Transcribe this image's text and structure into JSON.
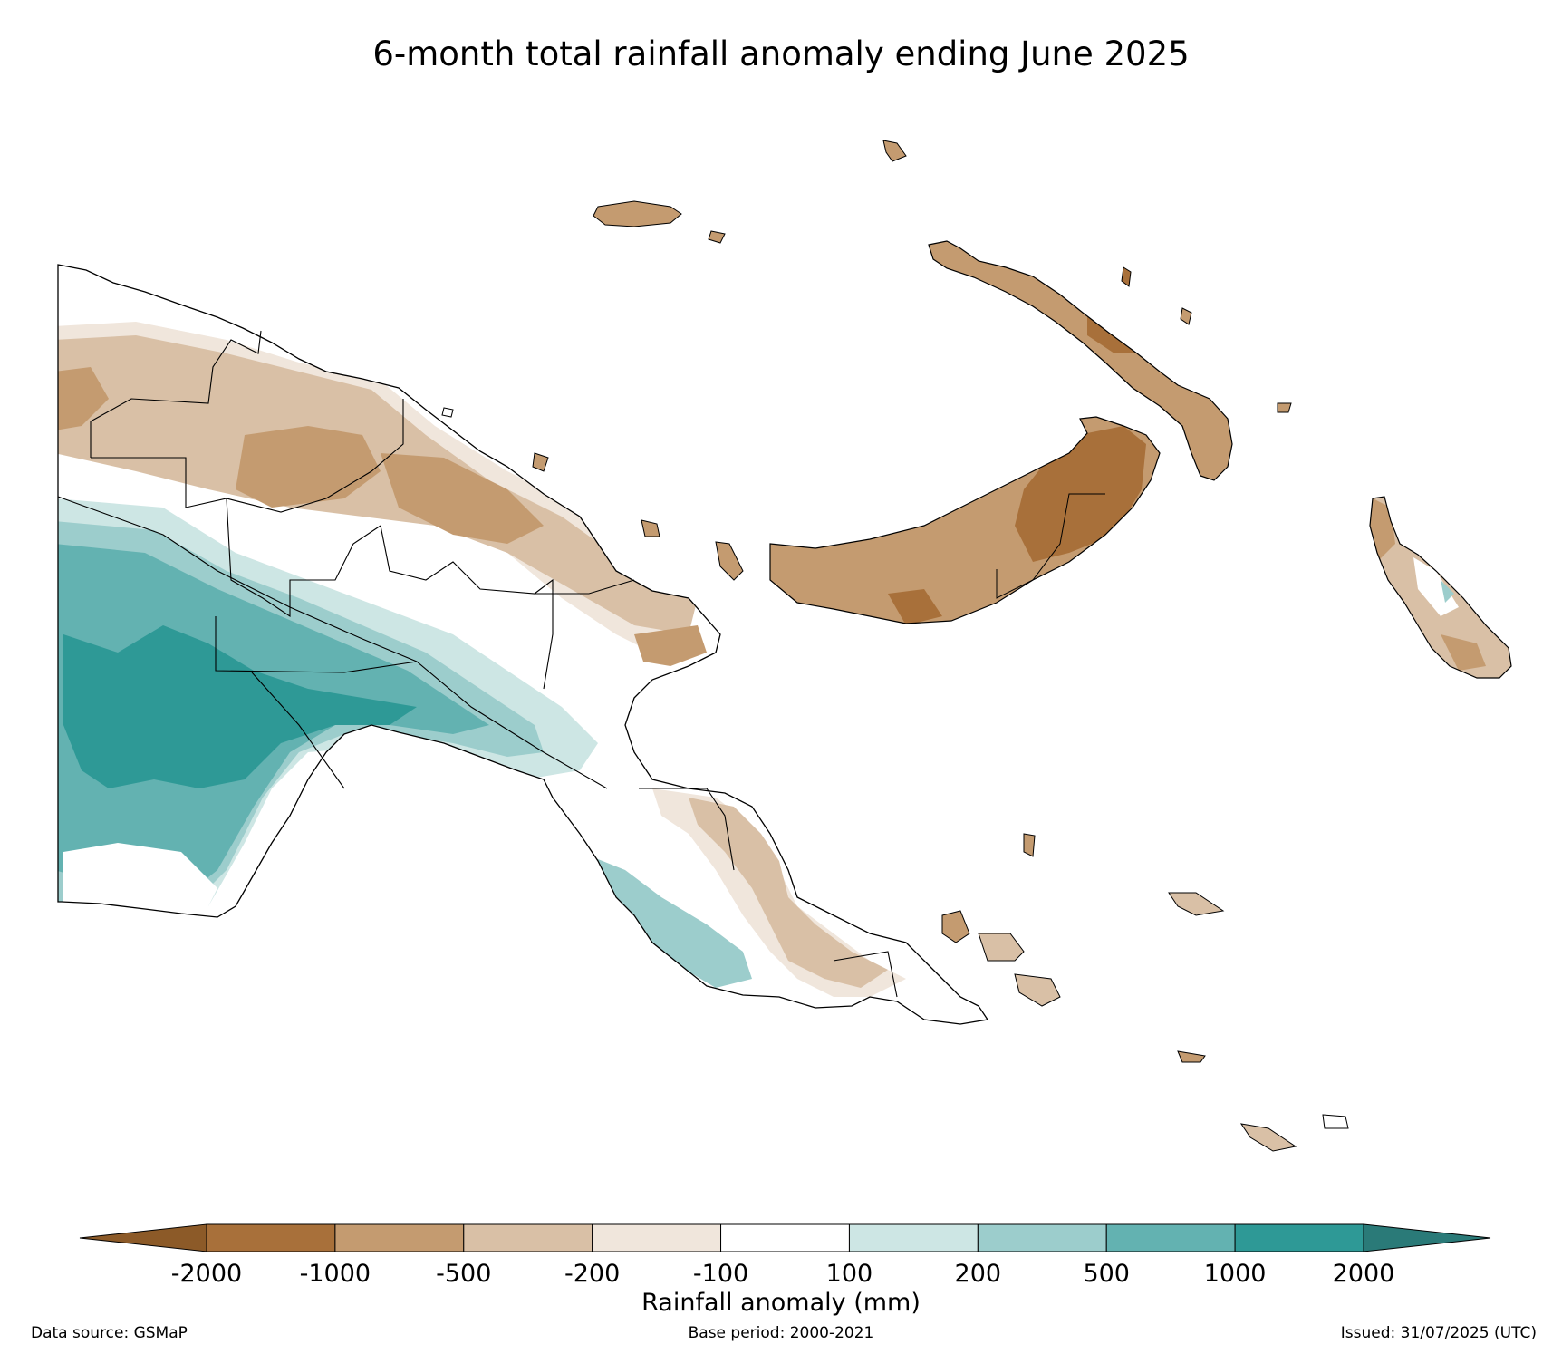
{
  "title": "6-month total rainfall anomaly ending June 2025",
  "colorbar": {
    "label": "Rainfall anomaly (mm)",
    "ticks": [
      "-2000",
      "-1000",
      "-500",
      "-200",
      "-100",
      "100",
      "200",
      "500",
      "1000",
      "2000"
    ],
    "extend_low_color": "#8c5a28",
    "extend_high_color": "#2a7a78",
    "colors": [
      "#a8703a",
      "#c49b70",
      "#d9c0a6",
      "#f0e6dc",
      "#ffffff",
      "#cde6e4",
      "#9ccdcc",
      "#63b2b1",
      "#2e9996"
    ]
  },
  "footer": {
    "source": "Data source: GSMaP",
    "base_period": "Base period: 2000-2021",
    "issued": "Issued: 31/07/2025 (UTC)"
  },
  "map": {
    "region": "Papua New Guinea",
    "colors": {
      "dry_strong": "#a8703a",
      "dry_mid": "#c49b70",
      "dry_light": "#d9c0a6",
      "dry_faint": "#f0e6dc",
      "neutral": "#ffffff",
      "wet_faint": "#cde6e4",
      "wet_light": "#9ccdcc",
      "wet_mid": "#63b2b1",
      "wet_strong": "#2e9996"
    }
  }
}
